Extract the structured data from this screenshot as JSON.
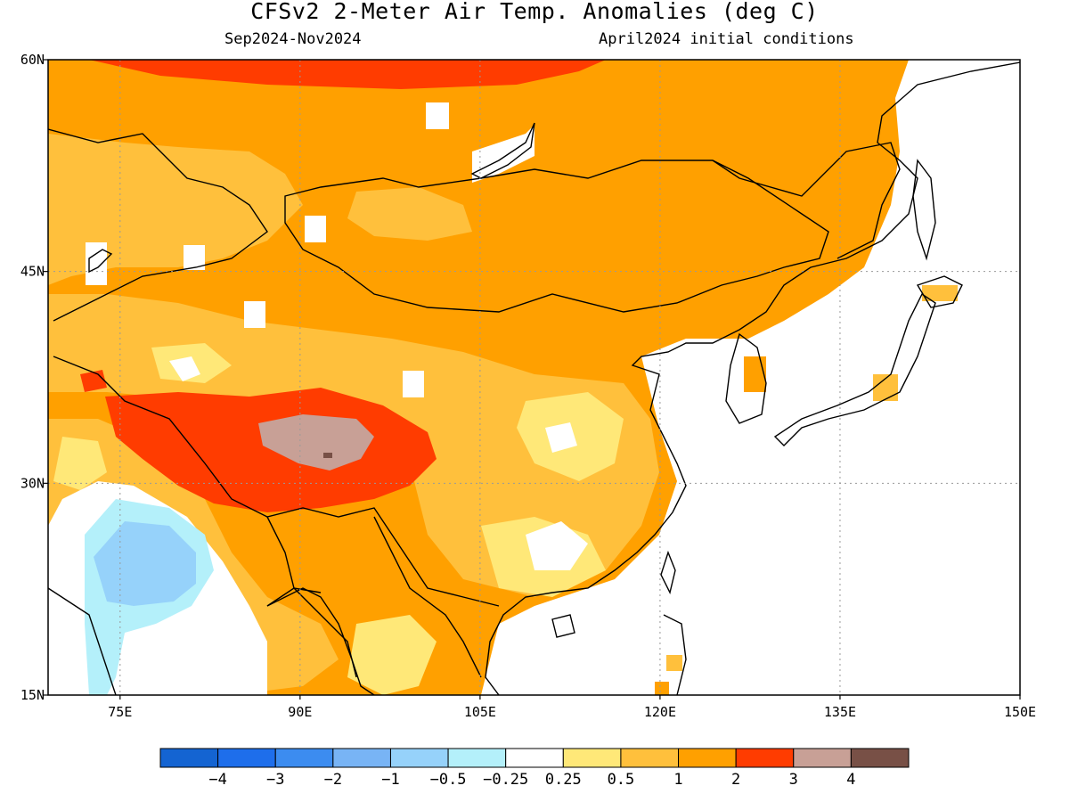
{
  "header": {
    "title": "CFSv2 2-Meter Air Temp. Anomalies (deg C)",
    "period": "Sep2024-Nov2024",
    "initial_conditions": "April2024 initial conditions"
  },
  "map": {
    "lat_range": [
      15,
      60
    ],
    "lon_range": [
      69,
      150
    ],
    "lat_ticks": [
      {
        "value": 60,
        "label": "60N"
      },
      {
        "value": 45,
        "label": "45N"
      },
      {
        "value": 30,
        "label": "30N"
      },
      {
        "value": 15,
        "label": "15N"
      }
    ],
    "lon_ticks": [
      {
        "value": 75,
        "label": "75E"
      },
      {
        "value": 90,
        "label": "90E"
      },
      {
        "value": 105,
        "label": "105E"
      },
      {
        "value": 120,
        "label": "120E"
      },
      {
        "value": 135,
        "label": "135E"
      },
      {
        "value": 150,
        "label": "150E"
      }
    ],
    "gridlines": true
  },
  "colorbar": {
    "bins": [
      {
        "color": "#1464d2"
      },
      {
        "color": "#1e6eeb"
      },
      {
        "color": "#3c8cf0"
      },
      {
        "color": "#78b4f5"
      },
      {
        "color": "#96d2fa"
      },
      {
        "color": "#b4f0fa"
      },
      {
        "color": "#ffffff"
      },
      {
        "color": "#ffe878"
      },
      {
        "color": "#ffc03c"
      },
      {
        "color": "#ffa000"
      },
      {
        "color": "#ff3c00"
      },
      {
        "color": "#c8a096"
      },
      {
        "color": "#785046"
      }
    ],
    "labels": [
      "-4",
      "-3",
      "-2",
      "-1",
      "-0.5",
      "-0.25",
      "0.25",
      "0.5",
      "1",
      "2",
      "3",
      "4"
    ]
  }
}
